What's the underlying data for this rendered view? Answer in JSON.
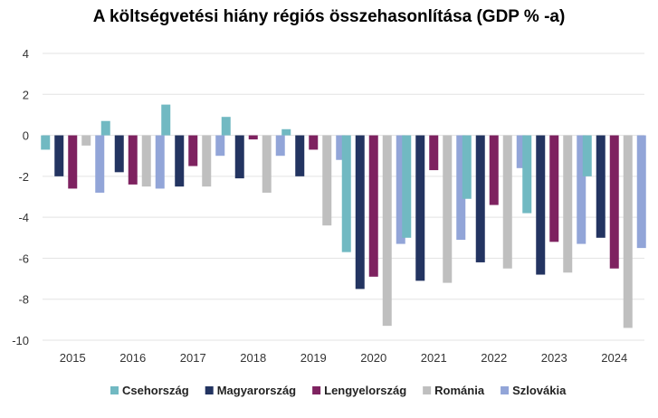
{
  "chart_data": {
    "type": "bar",
    "title": "A költségvetési hiány régiós összehasonlítása (GDP % -a)",
    "xlabel": "",
    "ylabel": "",
    "ylim": [
      -10,
      4
    ],
    "yticks": [
      4,
      2,
      0,
      -2,
      -4,
      -6,
      -8,
      -10
    ],
    "grid": true,
    "legend_position": "bottom",
    "categories": [
      "2015",
      "2016",
      "2017",
      "2018",
      "2019",
      "2020",
      "2021",
      "2022",
      "2023",
      "2024"
    ],
    "series": [
      {
        "name": "Csehország",
        "color": "#71b9c2",
        "values": [
          -0.7,
          0.7,
          1.5,
          0.9,
          0.3,
          -5.7,
          -5.0,
          -3.1,
          -3.8,
          -2.0
        ]
      },
      {
        "name": "Magyarország",
        "color": "#233461",
        "values": [
          -2.0,
          -1.8,
          -2.5,
          -2.1,
          -2.0,
          -7.5,
          -7.1,
          -6.2,
          -6.8,
          -5.0
        ]
      },
      {
        "name": "Lengyelország",
        "color": "#7e2260",
        "values": [
          -2.6,
          -2.4,
          -1.5,
          -0.2,
          -0.7,
          -6.9,
          -1.7,
          -3.4,
          -5.2,
          -6.5
        ]
      },
      {
        "name": "Románia",
        "color": "#bfbfbf",
        "values": [
          -0.5,
          -2.5,
          -2.5,
          -2.8,
          -4.4,
          -9.3,
          -7.2,
          -6.5,
          -6.7,
          -9.4
        ]
      },
      {
        "name": "Szlovákia",
        "color": "#92a5d8",
        "values": [
          -2.8,
          -2.6,
          -1.0,
          -1.0,
          -1.2,
          -5.3,
          -5.1,
          -1.6,
          -5.3,
          -5.5
        ]
      }
    ]
  }
}
